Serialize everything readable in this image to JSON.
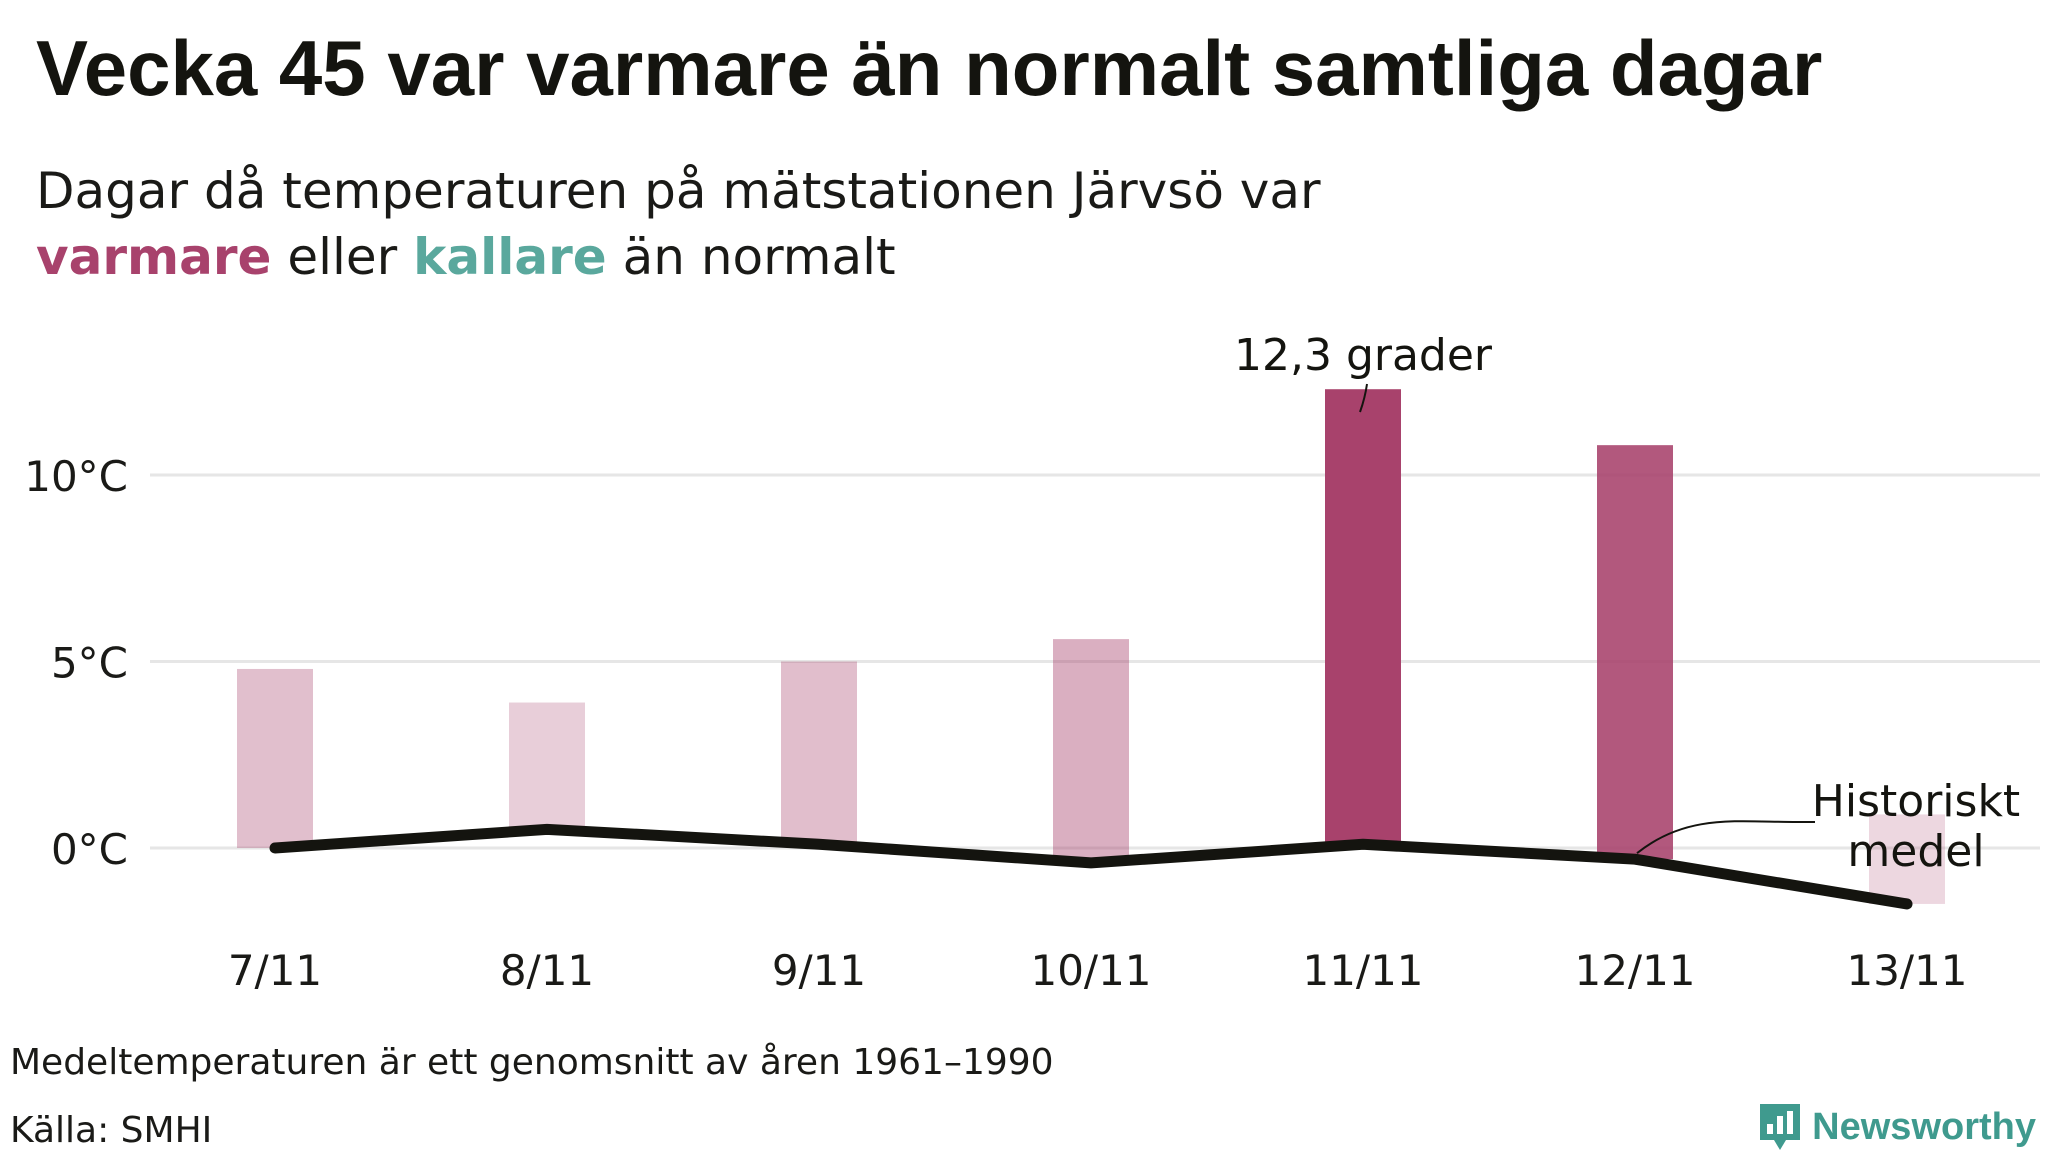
{
  "header": {
    "title": "Vecka 45 var varmare än normalt samtliga dagar",
    "subtitle_part1": "Dagar då temperaturen på mätstationen Järvsö var",
    "subtitle_warm": "varmare",
    "subtitle_mid": "eller",
    "subtitle_cold": "kallare",
    "subtitle_end": "än normalt"
  },
  "colors": {
    "warm_accent": "#a8426c",
    "cold_accent": "#5aa89d",
    "line": "#14140f",
    "gridline": "#e6e6e6"
  },
  "chart_data": {
    "type": "bar",
    "categories": [
      "7/11",
      "8/11",
      "9/11",
      "10/11",
      "11/11",
      "12/11",
      "13/11"
    ],
    "series": [
      {
        "values": [
          4.8,
          3.9,
          5.0,
          5.6,
          12.3,
          10.8,
          0.9
        ]
      },
      {
        "name": "Historiskt medel",
        "type": "line",
        "values": [
          0.0,
          0.5,
          0.1,
          -0.4,
          0.1,
          -0.3,
          -1.5
        ]
      }
    ],
    "yticks": [
      {
        "value": 0,
        "label": "0°C"
      },
      {
        "value": 5,
        "label": "5°C"
      },
      {
        "value": 10,
        "label": "10°C"
      }
    ],
    "ylim": [
      -2,
      13
    ],
    "grid": true,
    "annotations": [
      {
        "label": "12,3 grader",
        "category": "11/11"
      },
      {
        "label_line1": "Historiskt",
        "label_line2": "medel"
      }
    ]
  },
  "footer": {
    "note": "Medeltemperaturen är ett genomsnitt av åren 1961–1990",
    "source": "Källa: SMHI",
    "brand": "Newsworthy",
    "brand_icon": "newsworthy-logo-icon"
  }
}
